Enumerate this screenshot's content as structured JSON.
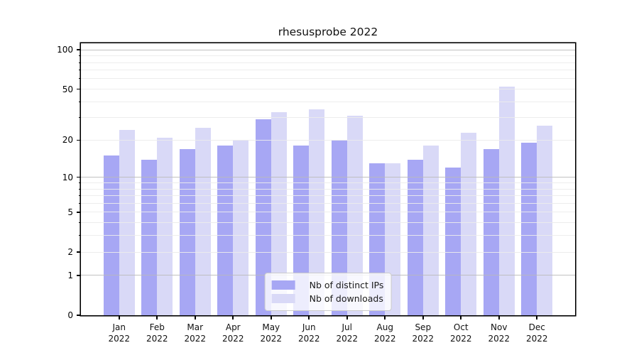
{
  "chart_data": {
    "type": "bar",
    "title": "rhesusprobe 2022",
    "xlabel": "",
    "ylabel": "",
    "categories": [
      "Jan 2022",
      "Feb 2022",
      "Mar 2022",
      "Apr 2022",
      "May 2022",
      "Jun 2022",
      "Jul 2022",
      "Aug 2022",
      "Sep 2022",
      "Oct 2022",
      "Nov 2022",
      "Dec 2022"
    ],
    "x_months": [
      "Jan",
      "Feb",
      "Mar",
      "Apr",
      "May",
      "Jun",
      "Jul",
      "Aug",
      "Sep",
      "Oct",
      "Nov",
      "Dec"
    ],
    "x_year": "2022",
    "series": [
      {
        "name": "Nb of distinct IPs",
        "color": "#a7a7f4",
        "values": [
          15,
          14,
          17,
          18,
          29,
          18,
          20,
          13,
          14,
          12,
          17,
          19
        ]
      },
      {
        "name": "Nb of downloads",
        "color": "#d9d9f7",
        "values": [
          24,
          21,
          25,
          20,
          33,
          35,
          31,
          13,
          18,
          23,
          52,
          26
        ]
      }
    ],
    "yaxis": {
      "scale": "log1p",
      "ymax_display": 112,
      "tick_labels": [
        "100",
        "50",
        "20",
        "10",
        "5",
        "2",
        "1",
        "0"
      ],
      "tick_values": [
        100,
        50,
        20,
        10,
        5,
        2,
        1,
        0
      ],
      "major_gridlines": [
        1,
        10,
        100
      ],
      "minor_gridlines": [
        2,
        3,
        4,
        5,
        6,
        7,
        8,
        9,
        20,
        30,
        40,
        50,
        60,
        70,
        80,
        90
      ]
    },
    "grid": true,
    "legend_position": "lower center"
  },
  "colors": {
    "bar_distinct_ips": "#a7a7f4",
    "bar_downloads": "#d9d9f7",
    "grid_major": "#b9b9b9",
    "grid_minor": "#ececec",
    "frame": "#000000",
    "background": "#ffffff"
  }
}
